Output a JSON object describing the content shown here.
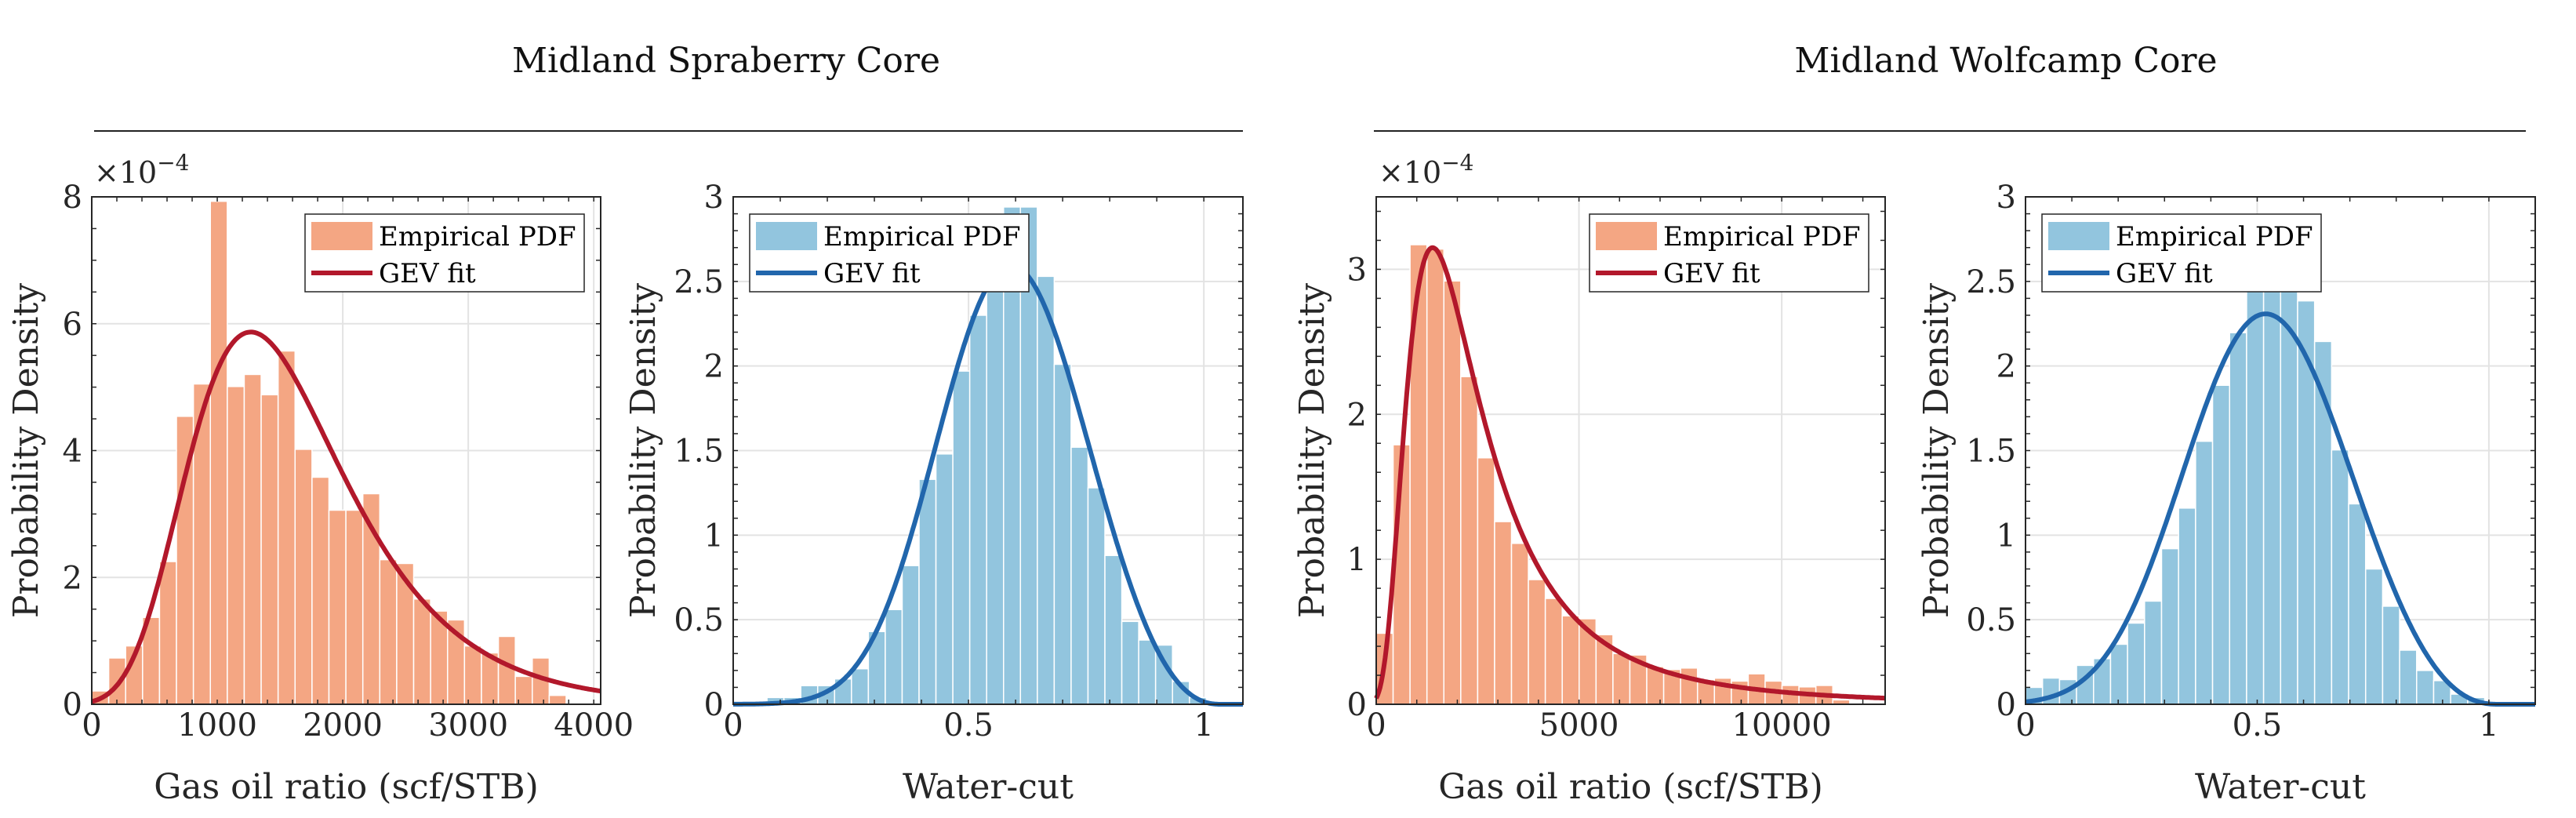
{
  "groups": [
    {
      "title": "Midland Spraberry Core"
    },
    {
      "title": "Midland Wolfcamp Core"
    }
  ],
  "chart_data": [
    {
      "type": "bar",
      "group": 0,
      "xlabel": "Gas oil ratio (scf/STB)",
      "ylabel": "Probability Density",
      "y_exponent_label": "×10",
      "y_exponent_power": "−4",
      "xlim": [
        0,
        4055
      ],
      "ylim": [
        0,
        8
      ],
      "xticks": [
        0,
        1000,
        2000,
        3000,
        4000
      ],
      "xtick_labels": [
        "0",
        "1000",
        "2000",
        "3000",
        "4000"
      ],
      "yticks": [
        0,
        2,
        4,
        6,
        8
      ],
      "ytick_labels": [
        "0",
        "2",
        "4",
        "6",
        "8"
      ],
      "x_minor_step": 200,
      "y_minor_step": 0.5,
      "bin_start": 0,
      "bin_width": 135,
      "values": [
        0.21,
        0.73,
        0.92,
        1.37,
        2.25,
        4.54,
        5.05,
        7.93,
        5.01,
        5.2,
        4.88,
        5.57,
        4.02,
        3.58,
        3.06,
        3.06,
        3.32,
        2.28,
        2.22,
        1.66,
        1.47,
        1.33,
        0.92,
        0.81,
        1.07,
        0.44,
        0.73,
        0.14
      ],
      "fit": {
        "name": "GEV fit",
        "k": 0.02,
        "sigma": 627,
        "mu": 1280,
        "scale": 10000
      },
      "legend": {
        "position": "top-right",
        "entries": [
          "Empirical PDF",
          "GEV fit"
        ]
      },
      "colors": {
        "bar": "#F4A683",
        "line": "#B2182B"
      },
      "grid": true
    },
    {
      "type": "bar",
      "group": 0,
      "xlabel": "Water-cut",
      "ylabel": "Probability Density",
      "xlim": [
        0,
        1.083
      ],
      "ylim": [
        0,
        3
      ],
      "xticks": [
        0,
        0.5,
        1
      ],
      "xtick_labels": [
        "0",
        "0.5",
        "1"
      ],
      "yticks": [
        0,
        0.5,
        1,
        1.5,
        2,
        2.5,
        3
      ],
      "ytick_labels": [
        "0",
        "0.5",
        "1",
        "1.5",
        "2",
        "2.5",
        "3"
      ],
      "x_minor_step": 0.1,
      "y_minor_step": 0.1,
      "bin_start": 0,
      "bin_width": 0.0359,
      "values": [
        0.005,
        0.005,
        0.04,
        0.04,
        0.11,
        0.11,
        0.15,
        0.21,
        0.43,
        0.56,
        0.82,
        1.33,
        1.48,
        1.97,
        2.3,
        2.47,
        2.94,
        2.94,
        2.53,
        2.01,
        1.52,
        1.28,
        0.88,
        0.49,
        0.38,
        0.35,
        0.135,
        0.04
      ],
      "fit": {
        "name": "GEV fit",
        "k": -0.3,
        "sigma": 0.149,
        "mu": 0.54,
        "scale": 1
      },
      "legend": {
        "position": "top-left",
        "entries": [
          "Empirical PDF",
          "GEV fit"
        ]
      },
      "colors": {
        "bar": "#92C5DE",
        "line": "#2166AC"
      },
      "grid": true
    },
    {
      "type": "bar",
      "group": 1,
      "xlabel": "Gas oil ratio (scf/STB)",
      "ylabel": "Probability Density",
      "y_exponent_label": "×10",
      "y_exponent_power": "−4",
      "xlim": [
        0,
        12550
      ],
      "ylim": [
        0,
        3.5
      ],
      "xticks": [
        0,
        5000,
        10000
      ],
      "xtick_labels": [
        "0",
        "5000",
        "10000"
      ],
      "yticks": [
        0,
        1,
        2,
        3
      ],
      "ytick_labels": [
        "0",
        "1",
        "2",
        "3"
      ],
      "x_minor_step": 1000,
      "y_minor_step": 0.2,
      "bin_start": 0,
      "bin_width": 417,
      "values": [
        0.49,
        1.79,
        3.17,
        3.14,
        2.92,
        2.26,
        1.7,
        1.26,
        1.11,
        0.86,
        0.73,
        0.61,
        0.59,
        0.48,
        0.35,
        0.34,
        0.26,
        0.24,
        0.25,
        0.17,
        0.18,
        0.16,
        0.21,
        0.16,
        0.13,
        0.12,
        0.13,
        0.03
      ],
      "fit": {
        "name": "GEV fit",
        "k": 0.4,
        "sigma": 1254,
        "mu": 1785,
        "scale": 10000
      },
      "legend": {
        "position": "top-right",
        "entries": [
          "Empirical PDF",
          "GEV fit"
        ]
      },
      "colors": {
        "bar": "#F4A683",
        "line": "#B2182B"
      },
      "grid": true
    },
    {
      "type": "bar",
      "group": 1,
      "xlabel": "Water-cut",
      "ylabel": "Probability Density",
      "xlim": [
        0,
        1.1
      ],
      "ylim": [
        0,
        3
      ],
      "xticks": [
        0,
        0.5,
        1
      ],
      "xtick_labels": [
        "0",
        "0.5",
        "1"
      ],
      "yticks": [
        0,
        0.5,
        1,
        1.5,
        2,
        2.5,
        3
      ],
      "ytick_labels": [
        "0",
        "0.5",
        "1",
        "1.5",
        "2",
        "2.5",
        "3"
      ],
      "x_minor_step": 0.1,
      "y_minor_step": 0.1,
      "bin_start": 0,
      "bin_width": 0.0367,
      "values": [
        0.1,
        0.155,
        0.146,
        0.23,
        0.27,
        0.355,
        0.48,
        0.61,
        0.92,
        1.16,
        1.555,
        1.886,
        2.197,
        2.55,
        2.63,
        2.52,
        2.385,
        2.145,
        1.504,
        1.185,
        0.8,
        0.58,
        0.32,
        0.2,
        0.14,
        0.06,
        0.04
      ],
      "fit": {
        "name": "GEV fit",
        "k": -0.3,
        "sigma": 0.1676,
        "mu": 0.4615,
        "scale": 1
      },
      "legend": {
        "position": "top-left",
        "entries": [
          "Empirical PDF",
          "GEV fit"
        ]
      },
      "colors": {
        "bar": "#92C5DE",
        "line": "#2166AC"
      },
      "grid": true
    }
  ]
}
